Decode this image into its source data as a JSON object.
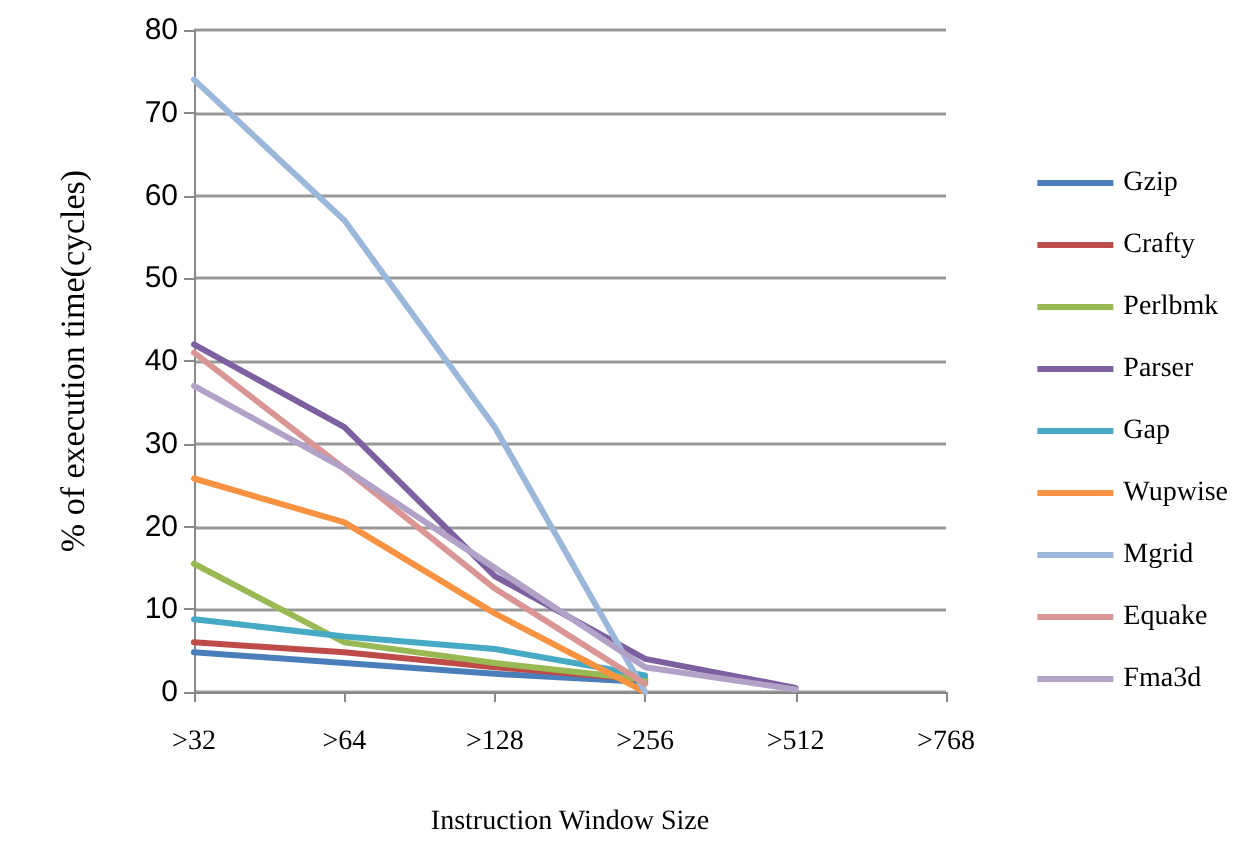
{
  "chart_data": {
    "type": "line",
    "xlabel": "Instruction Window Size",
    "ylabel": "% of execution time(cycles)",
    "categories": [
      ">32",
      ">64",
      ">128",
      ">256",
      ">512",
      ">768"
    ],
    "ylim": [
      0,
      80
    ],
    "yticks": [
      0,
      10,
      20,
      30,
      40,
      50,
      60,
      70,
      80
    ],
    "grid": "y",
    "legend": "right",
    "marker": "none",
    "line_style": "solid",
    "series": [
      {
        "name": "Gzip",
        "color": "#4a7ebb",
        "values": [
          4.8,
          3.5,
          2.2,
          1.2,
          null,
          null
        ]
      },
      {
        "name": "Crafty",
        "color": "#be4b48",
        "values": [
          6,
          4.8,
          3,
          1.5,
          null,
          null
        ]
      },
      {
        "name": "Perlbmk",
        "color": "#98b954",
        "values": [
          15.5,
          6,
          3.5,
          1.5,
          null,
          null
        ]
      },
      {
        "name": "Parser",
        "color": "#7d60a0",
        "values": [
          42,
          32,
          14,
          4,
          0.5,
          null
        ]
      },
      {
        "name": "Gap",
        "color": "#46aac5",
        "values": [
          8.8,
          6.7,
          5.2,
          2,
          null,
          null
        ]
      },
      {
        "name": "Wupwise",
        "color": "#f69240",
        "values": [
          25.8,
          20.5,
          9.5,
          0,
          null,
          null
        ]
      },
      {
        "name": "Mgrid",
        "color": "#9bb7d9",
        "values": [
          74,
          57,
          32,
          0,
          null,
          null
        ]
      },
      {
        "name": "Equake",
        "color": "#d99694",
        "values": [
          41,
          27,
          12.5,
          1,
          null,
          null
        ]
      },
      {
        "name": "Fma3d",
        "color": "#b3a2c7",
        "values": [
          37,
          27,
          15,
          3,
          0.3,
          null
        ]
      }
    ]
  }
}
